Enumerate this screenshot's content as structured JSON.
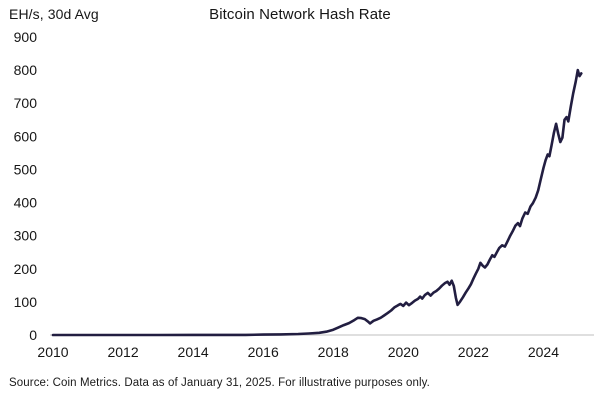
{
  "chart_data": {
    "type": "line",
    "title": "Bitcoin Network Hash Rate",
    "ylabel": "EH/s, 30d Avg",
    "xlabel": "",
    "source_note": "Source: Coin Metrics. Data as of January 31, 2025. For illustrative purposes only.",
    "x_ticks": [
      2010,
      2012,
      2014,
      2016,
      2018,
      2020,
      2022,
      2024
    ],
    "y_ticks": [
      0,
      100,
      200,
      300,
      400,
      500,
      600,
      700,
      800,
      900
    ],
    "x_range": [
      2010,
      2025.5
    ],
    "y_range": [
      0,
      900
    ],
    "grid": false,
    "legend": "none",
    "colors": {
      "line": "#221e41",
      "axis_baseline": "#cccccc",
      "text": "#161616"
    },
    "series": [
      {
        "name": "Bitcoin network hash rate (EH/s, 30-day average)",
        "points": [
          [
            2010,
            0
          ],
          [
            2011,
            0
          ],
          [
            2012,
            0
          ],
          [
            2013,
            0.1
          ],
          [
            2014,
            0.2
          ],
          [
            2015,
            0.35
          ],
          [
            2015.5,
            0.45
          ],
          [
            2016,
            1.3
          ],
          [
            2016.5,
            1.7
          ],
          [
            2017,
            3
          ],
          [
            2017.3,
            4.5
          ],
          [
            2017.6,
            6.5
          ],
          [
            2017.8,
            10
          ],
          [
            2018,
            16
          ],
          [
            2018.15,
            23
          ],
          [
            2018.3,
            30
          ],
          [
            2018.45,
            36
          ],
          [
            2018.6,
            45
          ],
          [
            2018.7,
            52
          ],
          [
            2018.8,
            51
          ],
          [
            2018.9,
            48
          ],
          [
            2019,
            40
          ],
          [
            2019.05,
            35
          ],
          [
            2019.15,
            43
          ],
          [
            2019.25,
            47
          ],
          [
            2019.35,
            52
          ],
          [
            2019.45,
            59
          ],
          [
            2019.55,
            66
          ],
          [
            2019.65,
            74
          ],
          [
            2019.75,
            84
          ],
          [
            2019.85,
            90
          ],
          [
            2019.92,
            94
          ],
          [
            2020,
            88
          ],
          [
            2020.08,
            98
          ],
          [
            2020.16,
            90
          ],
          [
            2020.25,
            97
          ],
          [
            2020.33,
            104
          ],
          [
            2020.42,
            109
          ],
          [
            2020.48,
            116
          ],
          [
            2020.54,
            110
          ],
          [
            2020.62,
            121
          ],
          [
            2020.7,
            127
          ],
          [
            2020.78,
            119
          ],
          [
            2020.86,
            128
          ],
          [
            2020.94,
            133
          ],
          [
            2021.02,
            140
          ],
          [
            2021.1,
            149
          ],
          [
            2021.18,
            156
          ],
          [
            2021.26,
            161
          ],
          [
            2021.32,
            152
          ],
          [
            2021.38,
            164
          ],
          [
            2021.44,
            148
          ],
          [
            2021.5,
            112
          ],
          [
            2021.55,
            91
          ],
          [
            2021.62,
            101
          ],
          [
            2021.7,
            114
          ],
          [
            2021.78,
            128
          ],
          [
            2021.86,
            141
          ],
          [
            2021.93,
            153
          ],
          [
            2022,
            170
          ],
          [
            2022.07,
            185
          ],
          [
            2022.14,
            200
          ],
          [
            2022.2,
            218
          ],
          [
            2022.27,
            209
          ],
          [
            2022.33,
            204
          ],
          [
            2022.4,
            213
          ],
          [
            2022.47,
            228
          ],
          [
            2022.54,
            241
          ],
          [
            2022.6,
            236
          ],
          [
            2022.67,
            250
          ],
          [
            2022.74,
            263
          ],
          [
            2022.82,
            271
          ],
          [
            2022.9,
            267
          ],
          [
            2022.97,
            282
          ],
          [
            2023.05,
            300
          ],
          [
            2023.12,
            313
          ],
          [
            2023.2,
            330
          ],
          [
            2023.27,
            338
          ],
          [
            2023.33,
            329
          ],
          [
            2023.4,
            352
          ],
          [
            2023.48,
            370
          ],
          [
            2023.55,
            366
          ],
          [
            2023.63,
            388
          ],
          [
            2023.7,
            398
          ],
          [
            2023.78,
            415
          ],
          [
            2023.85,
            437
          ],
          [
            2023.92,
            468
          ],
          [
            2024,
            505
          ],
          [
            2024.06,
            528
          ],
          [
            2024.12,
            545
          ],
          [
            2024.17,
            540
          ],
          [
            2024.23,
            572
          ],
          [
            2024.3,
            612
          ],
          [
            2024.36,
            638
          ],
          [
            2024.42,
            608
          ],
          [
            2024.48,
            583
          ],
          [
            2024.54,
            596
          ],
          [
            2024.6,
            650
          ],
          [
            2024.66,
            658
          ],
          [
            2024.71,
            645
          ],
          [
            2024.78,
            690
          ],
          [
            2024.85,
            730
          ],
          [
            2024.92,
            765
          ],
          [
            2024.98,
            800
          ],
          [
            2025.03,
            782
          ],
          [
            2025.08,
            790
          ]
        ]
      }
    ]
  }
}
